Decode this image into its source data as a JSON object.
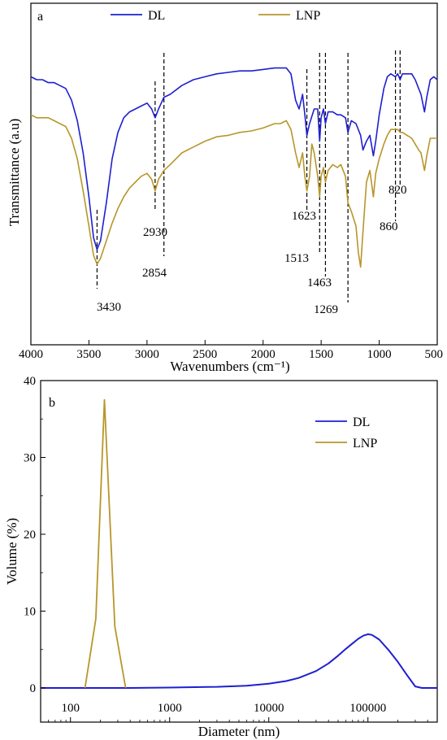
{
  "colors": {
    "DL": "#1f1fd0",
    "LNP": "#b8962a",
    "axis": "#000000"
  },
  "chart_data": [
    {
      "type": "line",
      "panel_label": "a",
      "xlabel": "Wavenumbers (cm⁻¹)",
      "ylabel": "Transmittance (a.u)",
      "x_reversed": true,
      "xlim": [
        4000,
        500
      ],
      "ylim": [
        0,
        100
      ],
      "xticks": [
        4000,
        3500,
        3000,
        2500,
        2000,
        1500,
        1000,
        500
      ],
      "legend": "top",
      "series": [
        {
          "name": "DL",
          "color": "#1f1fd0",
          "points": [
            [
              4000,
              86
            ],
            [
              3950,
              85
            ],
            [
              3900,
              85
            ],
            [
              3850,
              84
            ],
            [
              3800,
              84
            ],
            [
              3750,
              83
            ],
            [
              3700,
              82
            ],
            [
              3650,
              78
            ],
            [
              3600,
              71
            ],
            [
              3550,
              60
            ],
            [
              3500,
              45
            ],
            [
              3460,
              31
            ],
            [
              3430,
              27
            ],
            [
              3400,
              30
            ],
            [
              3350,
              43
            ],
            [
              3300,
              58
            ],
            [
              3250,
              67
            ],
            [
              3200,
              72
            ],
            [
              3150,
              74
            ],
            [
              3100,
              75
            ],
            [
              3050,
              76
            ],
            [
              3000,
              77
            ],
            [
              2960,
              75
            ],
            [
              2930,
              72
            ],
            [
              2900,
              75
            ],
            [
              2854,
              79
            ],
            [
              2800,
              80
            ],
            [
              2700,
              83
            ],
            [
              2600,
              85
            ],
            [
              2500,
              86
            ],
            [
              2400,
              87
            ],
            [
              2300,
              87.5
            ],
            [
              2200,
              88
            ],
            [
              2100,
              88
            ],
            [
              2000,
              88.5
            ],
            [
              1900,
              89
            ],
            [
              1850,
              89
            ],
            [
              1800,
              89
            ],
            [
              1760,
              87
            ],
            [
              1720,
              78
            ],
            [
              1690,
              75
            ],
            [
              1660,
              80
            ],
            [
              1640,
              73
            ],
            [
              1623,
              66
            ],
            [
              1600,
              70
            ],
            [
              1560,
              75
            ],
            [
              1530,
              75
            ],
            [
              1513,
              64
            ],
            [
              1500,
              72
            ],
            [
              1480,
              75
            ],
            [
              1463,
              70
            ],
            [
              1440,
              74
            ],
            [
              1400,
              74
            ],
            [
              1360,
              73
            ],
            [
              1330,
              73
            ],
            [
              1290,
              72
            ],
            [
              1269,
              67
            ],
            [
              1240,
              71
            ],
            [
              1200,
              70
            ],
            [
              1160,
              66
            ],
            [
              1140,
              61
            ],
            [
              1110,
              64
            ],
            [
              1080,
              66
            ],
            [
              1050,
              59
            ],
            [
              1030,
              64
            ],
            [
              1000,
              73
            ],
            [
              960,
              82
            ],
            [
              930,
              86
            ],
            [
              900,
              87
            ],
            [
              860,
              86
            ],
            [
              840,
              87
            ],
            [
              820,
              85
            ],
            [
              800,
              87
            ],
            [
              760,
              87
            ],
            [
              720,
              87
            ],
            [
              690,
              85
            ],
            [
              660,
              82
            ],
            [
              640,
              80
            ],
            [
              610,
              74
            ],
            [
              590,
              79
            ],
            [
              560,
              85
            ],
            [
              530,
              86
            ],
            [
              500,
              85
            ]
          ]
        },
        {
          "name": "LNP",
          "color": "#b8962a",
          "points": [
            [
              4000,
              73
            ],
            [
              3950,
              72
            ],
            [
              3900,
              72
            ],
            [
              3850,
              72
            ],
            [
              3800,
              71
            ],
            [
              3750,
              70
            ],
            [
              3700,
              69
            ],
            [
              3650,
              65
            ],
            [
              3600,
              58
            ],
            [
              3550,
              47
            ],
            [
              3500,
              35
            ],
            [
              3460,
              25
            ],
            [
              3430,
              22
            ],
            [
              3400,
              24
            ],
            [
              3350,
              30
            ],
            [
              3300,
              36
            ],
            [
              3250,
              41
            ],
            [
              3200,
              45
            ],
            [
              3150,
              48
            ],
            [
              3100,
              50
            ],
            [
              3050,
              52
            ],
            [
              3000,
              53
            ],
            [
              2960,
              51
            ],
            [
              2930,
              47
            ],
            [
              2900,
              51
            ],
            [
              2854,
              54
            ],
            [
              2800,
              56
            ],
            [
              2700,
              60
            ],
            [
              2600,
              62
            ],
            [
              2500,
              64
            ],
            [
              2400,
              65.5
            ],
            [
              2300,
              66
            ],
            [
              2200,
              67
            ],
            [
              2100,
              67.5
            ],
            [
              2000,
              68.5
            ],
            [
              1900,
              70
            ],
            [
              1850,
              70
            ],
            [
              1800,
              71
            ],
            [
              1760,
              68
            ],
            [
              1720,
              60
            ],
            [
              1690,
              55
            ],
            [
              1660,
              60
            ],
            [
              1640,
              52
            ],
            [
              1623,
              47
            ],
            [
              1600,
              52
            ],
            [
              1580,
              63
            ],
            [
              1560,
              60
            ],
            [
              1530,
              52
            ],
            [
              1513,
              45
            ],
            [
              1500,
              52
            ],
            [
              1480,
              55
            ],
            [
              1463,
              50
            ],
            [
              1440,
              54
            ],
            [
              1400,
              56
            ],
            [
              1360,
              55
            ],
            [
              1330,
              56
            ],
            [
              1290,
              52
            ],
            [
              1269,
              43
            ],
            [
              1240,
              40
            ],
            [
              1200,
              35
            ],
            [
              1180,
              26
            ],
            [
              1160,
              21
            ],
            [
              1140,
              33
            ],
            [
              1110,
              50
            ],
            [
              1080,
              54
            ],
            [
              1050,
              45
            ],
            [
              1030,
              53
            ],
            [
              1000,
              58
            ],
            [
              960,
              63
            ],
            [
              930,
              66
            ],
            [
              900,
              68
            ],
            [
              860,
              68
            ],
            [
              840,
              68
            ],
            [
              820,
              67
            ],
            [
              800,
              67
            ],
            [
              760,
              66
            ],
            [
              720,
              65
            ],
            [
              690,
              63
            ],
            [
              660,
              61
            ],
            [
              640,
              60
            ],
            [
              610,
              54
            ],
            [
              590,
              59
            ],
            [
              560,
              65
            ],
            [
              530,
              65
            ],
            [
              500,
              65
            ]
          ]
        }
      ],
      "annotations": [
        {
          "x": 3430,
          "label": "3430"
        },
        {
          "x": 2930,
          "label": "2930"
        },
        {
          "x": 2854,
          "label": "2854"
        },
        {
          "x": 1623,
          "label": "1623"
        },
        {
          "x": 1513,
          "label": "1513"
        },
        {
          "x": 1463,
          "label": "1463"
        },
        {
          "x": 1269,
          "label": "1269"
        },
        {
          "x": 860,
          "label": "860"
        },
        {
          "x": 820,
          "label": "820"
        }
      ]
    },
    {
      "type": "line",
      "panel_label": "b",
      "xlabel": "Diameter (nm)",
      "ylabel": "Volume (%)",
      "x_scale": "log",
      "xlim": [
        50,
        500000
      ],
      "ylim": [
        0,
        40
      ],
      "xticks": [
        100,
        1000,
        10000,
        100000
      ],
      "yticks": [
        0,
        10,
        20,
        30,
        40
      ],
      "legend": "top-right",
      "series": [
        {
          "name": "DL",
          "color": "#1f1fd0",
          "points": [
            [
              50,
              0
            ],
            [
              100,
              0
            ],
            [
              200,
              0
            ],
            [
              400,
              0
            ],
            [
              1000,
              0.05
            ],
            [
              3000,
              0.15
            ],
            [
              6000,
              0.3
            ],
            [
              10000,
              0.55
            ],
            [
              15000,
              0.9
            ],
            [
              20000,
              1.3
            ],
            [
              30000,
              2.2
            ],
            [
              40000,
              3.2
            ],
            [
              50000,
              4.2
            ],
            [
              60000,
              5.1
            ],
            [
              70000,
              5.8
            ],
            [
              80000,
              6.4
            ],
            [
              90000,
              6.8
            ],
            [
              100000,
              7.0
            ],
            [
              110000,
              6.9
            ],
            [
              130000,
              6.3
            ],
            [
              160000,
              5.0
            ],
            [
              200000,
              3.4
            ],
            [
              250000,
              1.6
            ],
            [
              300000,
              0.2
            ],
            [
              350000,
              0
            ],
            [
              500000,
              0
            ]
          ]
        },
        {
          "name": "LNP",
          "color": "#b8962a",
          "points": [
            [
              140,
              0
            ],
            [
              180,
              9
            ],
            [
              220,
              37.5
            ],
            [
              280,
              8
            ],
            [
              360,
              0
            ]
          ]
        }
      ]
    }
  ]
}
